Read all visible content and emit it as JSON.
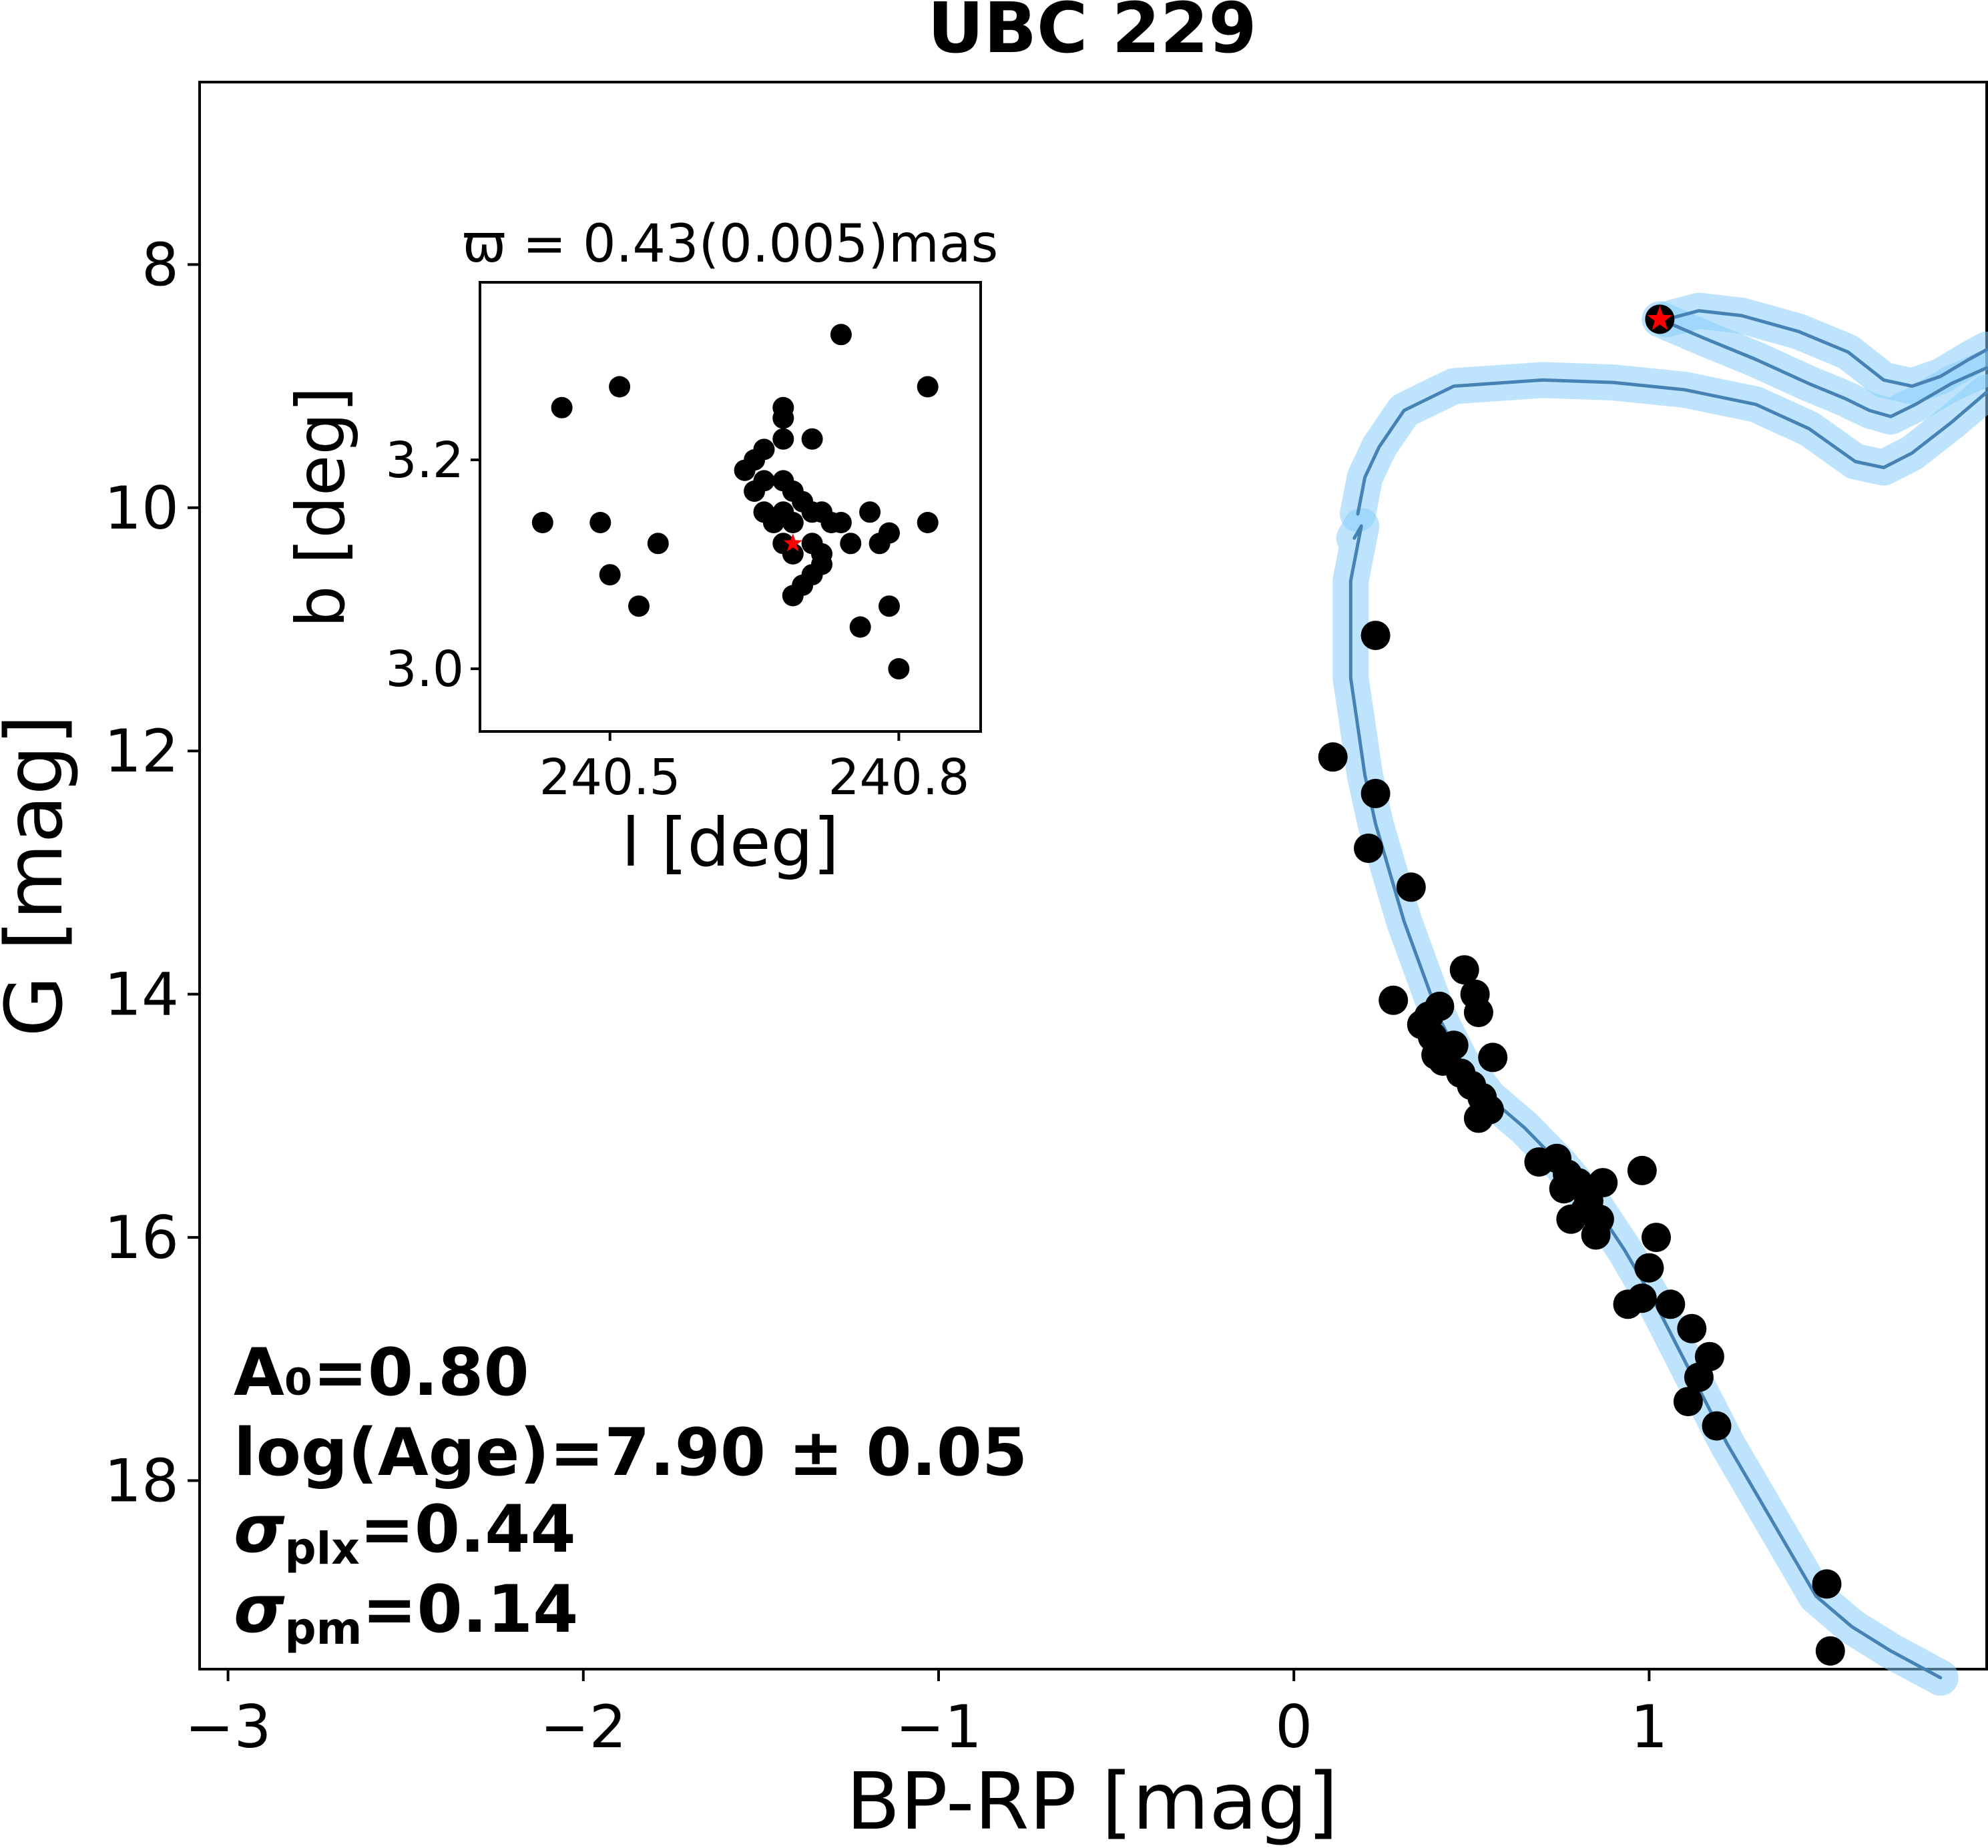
{
  "chart_data": [
    {
      "type": "scatter",
      "role": "main",
      "title": "UBC 229",
      "xlabel": "BP-RP [mag]",
      "ylabel": "G [mag]",
      "xlim": [
        -3.08,
        1.95
      ],
      "ylim": [
        19.55,
        6.5
      ],
      "y_inverted": true,
      "xticks": [
        -3,
        -2,
        -1,
        0,
        1
      ],
      "xtick_labels": [
        "−3",
        "−2",
        "−1",
        "0",
        "1"
      ],
      "yticks": [
        8,
        10,
        12,
        14,
        16,
        18
      ],
      "ytick_labels": [
        "8",
        "10",
        "12",
        "14",
        "16",
        "18"
      ],
      "grid": false,
      "colors": {
        "points": "#000000",
        "isochrone": "#4682b4",
        "band": "#87cefa",
        "star": "#ff0000"
      },
      "points": [
        [
          0.23,
          11.05
        ],
        [
          0.11,
          12.05
        ],
        [
          0.23,
          12.35
        ],
        [
          0.21,
          12.8
        ],
        [
          0.33,
          13.12
        ],
        [
          0.48,
          13.8
        ],
        [
          0.51,
          14.0
        ],
        [
          0.28,
          14.05
        ],
        [
          0.52,
          14.15
        ],
        [
          0.38,
          14.18
        ],
        [
          0.41,
          14.1
        ],
        [
          0.36,
          14.25
        ],
        [
          0.39,
          14.35
        ],
        [
          0.45,
          14.42
        ],
        [
          0.4,
          14.5
        ],
        [
          0.42,
          14.55
        ],
        [
          0.56,
          14.52
        ],
        [
          0.47,
          14.65
        ],
        [
          0.5,
          14.75
        ],
        [
          0.53,
          14.85
        ],
        [
          0.55,
          14.95
        ],
        [
          0.52,
          15.02
        ],
        [
          0.69,
          15.38
        ],
        [
          0.74,
          15.35
        ],
        [
          0.77,
          15.48
        ],
        [
          0.76,
          15.6
        ],
        [
          0.8,
          15.55
        ],
        [
          0.83,
          15.7
        ],
        [
          0.78,
          15.85
        ],
        [
          0.82,
          15.78
        ],
        [
          0.87,
          15.55
        ],
        [
          0.98,
          15.45
        ],
        [
          0.86,
          15.85
        ],
        [
          0.85,
          15.98
        ],
        [
          1.02,
          16.0
        ],
        [
          1.0,
          16.25
        ],
        [
          0.94,
          16.55
        ],
        [
          0.98,
          16.5
        ],
        [
          1.06,
          16.55
        ],
        [
          1.12,
          16.75
        ],
        [
          1.17,
          16.98
        ],
        [
          1.14,
          17.15
        ],
        [
          1.11,
          17.35
        ],
        [
          1.19,
          17.55
        ],
        [
          1.5,
          18.85
        ],
        [
          1.51,
          19.4
        ]
      ],
      "highlight_star": [
        1.03,
        8.45
      ],
      "isochrone_lower": [
        [
          0.17,
          10.25
        ],
        [
          0.19,
          10.15
        ],
        [
          0.16,
          10.6
        ],
        [
          0.16,
          11.0
        ],
        [
          0.16,
          11.4
        ],
        [
          0.18,
          11.8
        ],
        [
          0.2,
          12.2
        ],
        [
          0.23,
          12.6
        ],
        [
          0.27,
          13.0
        ],
        [
          0.31,
          13.4
        ],
        [
          0.36,
          13.8
        ],
        [
          0.41,
          14.2
        ],
        [
          0.47,
          14.55
        ],
        [
          0.55,
          14.85
        ],
        [
          0.65,
          15.1
        ],
        [
          0.75,
          15.4
        ],
        [
          0.85,
          15.75
        ],
        [
          0.93,
          16.1
        ],
        [
          1.01,
          16.5
        ],
        [
          1.08,
          16.9
        ],
        [
          1.15,
          17.3
        ],
        [
          1.22,
          17.7
        ],
        [
          1.3,
          18.1
        ],
        [
          1.38,
          18.5
        ],
        [
          1.47,
          18.95
        ],
        [
          1.57,
          19.2
        ],
        [
          1.68,
          19.4
        ],
        [
          1.82,
          19.62
        ]
      ],
      "isochrone_upper": [
        [
          0.18,
          10.05
        ],
        [
          0.2,
          9.75
        ],
        [
          0.24,
          9.5
        ],
        [
          0.31,
          9.2
        ],
        [
          0.45,
          9.0
        ],
        [
          0.7,
          8.95
        ],
        [
          0.9,
          8.97
        ],
        [
          1.1,
          9.03
        ],
        [
          1.3,
          9.15
        ],
        [
          1.45,
          9.35
        ],
        [
          1.58,
          9.62
        ],
        [
          1.66,
          9.67
        ],
        [
          1.74,
          9.55
        ],
        [
          1.85,
          9.3
        ],
        [
          1.95,
          9.05
        ]
      ],
      "isochrone_upper2": [
        [
          1.03,
          8.45
        ],
        [
          1.15,
          8.6
        ],
        [
          1.3,
          8.78
        ],
        [
          1.45,
          8.98
        ],
        [
          1.55,
          9.1
        ],
        [
          1.62,
          9.2
        ],
        [
          1.68,
          9.25
        ],
        [
          1.75,
          9.15
        ],
        [
          1.85,
          8.98
        ],
        [
          1.95,
          8.85
        ]
      ],
      "isochrone_upper3": [
        [
          1.05,
          8.45
        ],
        [
          1.14,
          8.38
        ],
        [
          1.26,
          8.42
        ],
        [
          1.42,
          8.55
        ],
        [
          1.56,
          8.72
        ],
        [
          1.66,
          8.95
        ],
        [
          1.74,
          9.0
        ],
        [
          1.82,
          8.92
        ],
        [
          1.9,
          8.78
        ],
        [
          1.95,
          8.7
        ]
      ],
      "annotations": {
        "a0": "A₀=0.80",
        "age": "log(Age)=7.90 ± 0.05",
        "splx_sym": "σ",
        "splx_sub": "plx",
        "splx_val": "=0.44",
        "spm_sym": "σ",
        "spm_sub": "pm",
        "spm_val": "=0.14"
      }
    },
    {
      "type": "scatter",
      "role": "inset",
      "title": "ϖ = 0.43(0.005)mas",
      "xlabel": "l [deg]",
      "ylabel": "b [deg]",
      "xlim": [
        240.365,
        240.885
      ],
      "ylim": [
        2.94,
        3.37
      ],
      "xticks": [
        240.5,
        240.8
      ],
      "xtick_labels": [
        "240.5",
        "240.8"
      ],
      "yticks": [
        3.0,
        3.2
      ],
      "ytick_labels": [
        "3.0",
        "3.2"
      ],
      "grid": false,
      "points": [
        [
          240.74,
          3.32
        ],
        [
          240.51,
          3.27
        ],
        [
          240.83,
          3.27
        ],
        [
          240.45,
          3.25
        ],
        [
          240.68,
          3.25
        ],
        [
          240.68,
          3.24
        ],
        [
          240.68,
          3.22
        ],
        [
          240.71,
          3.22
        ],
        [
          240.66,
          3.21
        ],
        [
          240.65,
          3.2
        ],
        [
          240.64,
          3.19
        ],
        [
          240.68,
          3.18
        ],
        [
          240.66,
          3.18
        ],
        [
          240.69,
          3.17
        ],
        [
          240.65,
          3.17
        ],
        [
          240.7,
          3.16
        ],
        [
          240.71,
          3.15
        ],
        [
          240.66,
          3.15
        ],
        [
          240.68,
          3.15
        ],
        [
          240.72,
          3.15
        ],
        [
          240.73,
          3.14
        ],
        [
          240.67,
          3.14
        ],
        [
          240.69,
          3.14
        ],
        [
          240.74,
          3.14
        ],
        [
          240.77,
          3.15
        ],
        [
          240.43,
          3.14
        ],
        [
          240.49,
          3.14
        ],
        [
          240.83,
          3.14
        ],
        [
          240.79,
          3.13
        ],
        [
          240.68,
          3.12
        ],
        [
          240.71,
          3.12
        ],
        [
          240.69,
          3.11
        ],
        [
          240.72,
          3.11
        ],
        [
          240.75,
          3.12
        ],
        [
          240.78,
          3.12
        ],
        [
          240.55,
          3.12
        ],
        [
          240.72,
          3.1
        ],
        [
          240.71,
          3.09
        ],
        [
          240.5,
          3.09
        ],
        [
          240.7,
          3.08
        ],
        [
          240.69,
          3.07
        ],
        [
          240.53,
          3.06
        ],
        [
          240.79,
          3.06
        ],
        [
          240.76,
          3.04
        ],
        [
          240.8,
          3.0
        ]
      ],
      "highlight_star": [
        240.69,
        3.12
      ]
    }
  ]
}
